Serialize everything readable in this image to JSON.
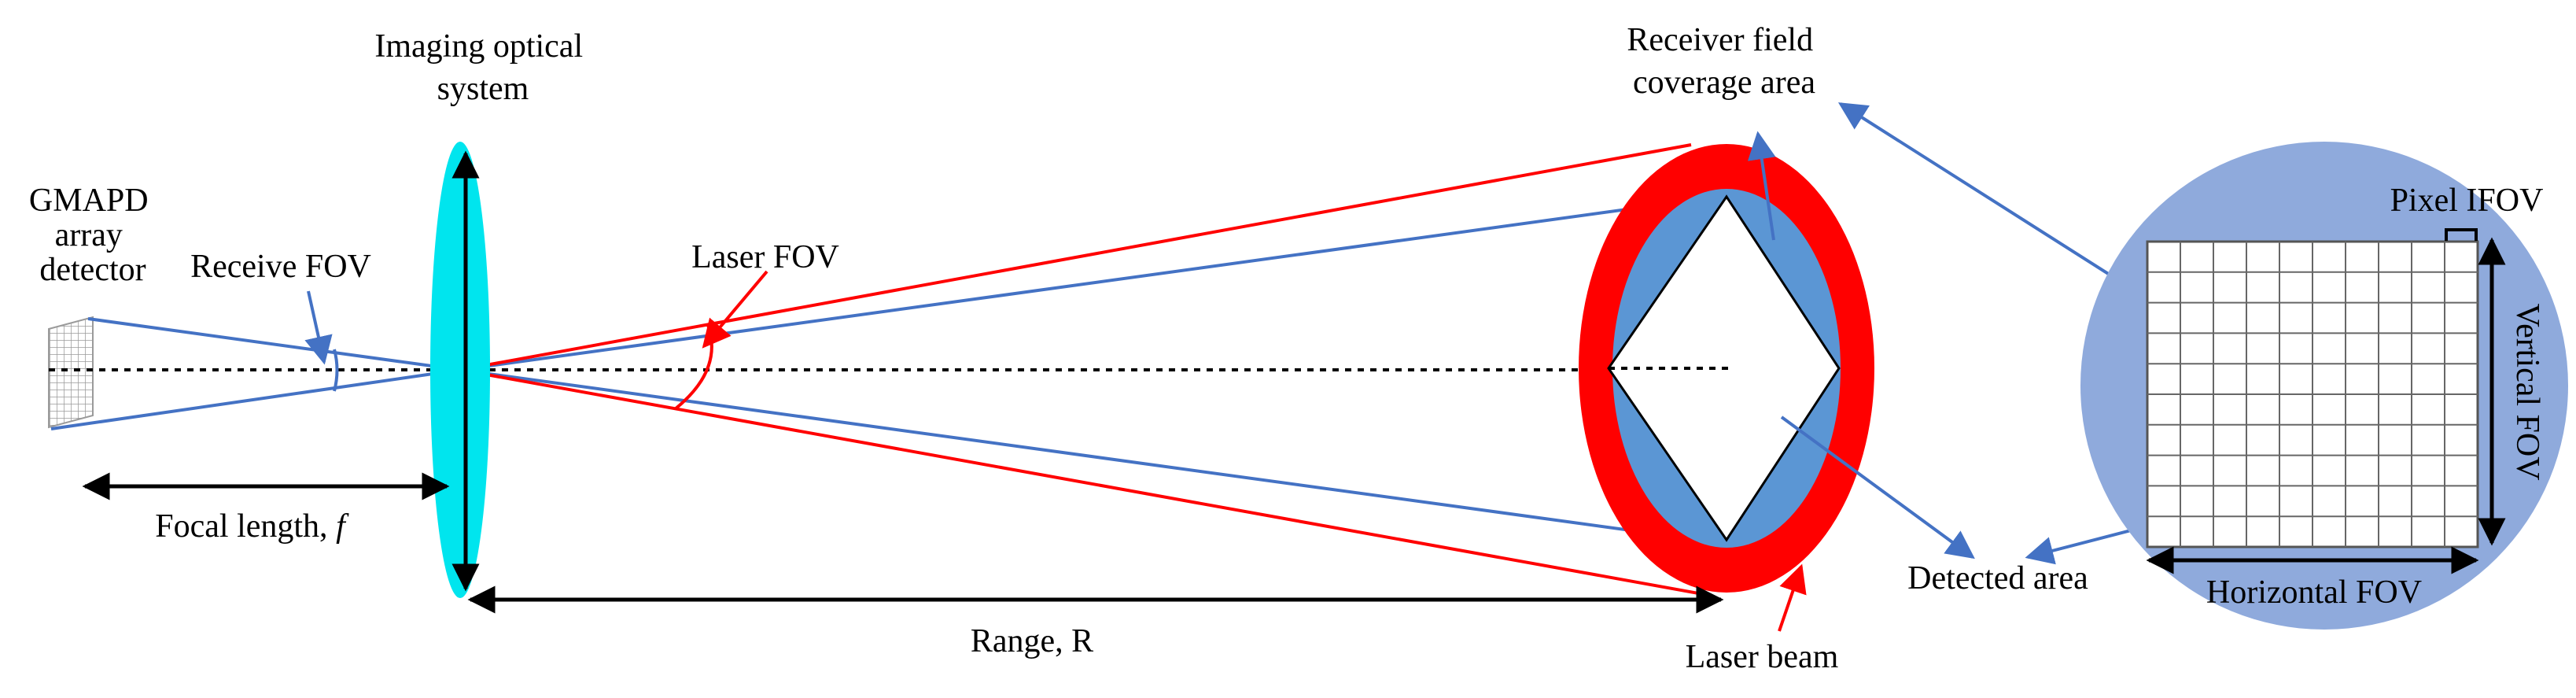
{
  "labels": {
    "gmapd": [
      "GMAPD",
      "array",
      "detector"
    ],
    "imaging": [
      "Imaging optical",
      "system"
    ],
    "receive_fov": "Receive FOV",
    "laser_fov": "Laser FOV",
    "focal_length": "Focal length, ",
    "focal_symbol": "f",
    "range": "Range, R",
    "receiver_field": [
      "Receiver field",
      "coverage area"
    ],
    "laser_beam": "Laser beam",
    "detected_area": "Detected area",
    "pixel_ifov": "Pixel IFOV",
    "vertical_fov": "Vertical FOV",
    "horizontal_fov": "Horizontal FOV"
  },
  "colors": {
    "laser": "#ff0000",
    "receiver": "#4472c4",
    "receiver_fill": "#5b96d4",
    "lens": "#00e5ee",
    "inset_disk": "#8faadc",
    "black": "#000000"
  }
}
